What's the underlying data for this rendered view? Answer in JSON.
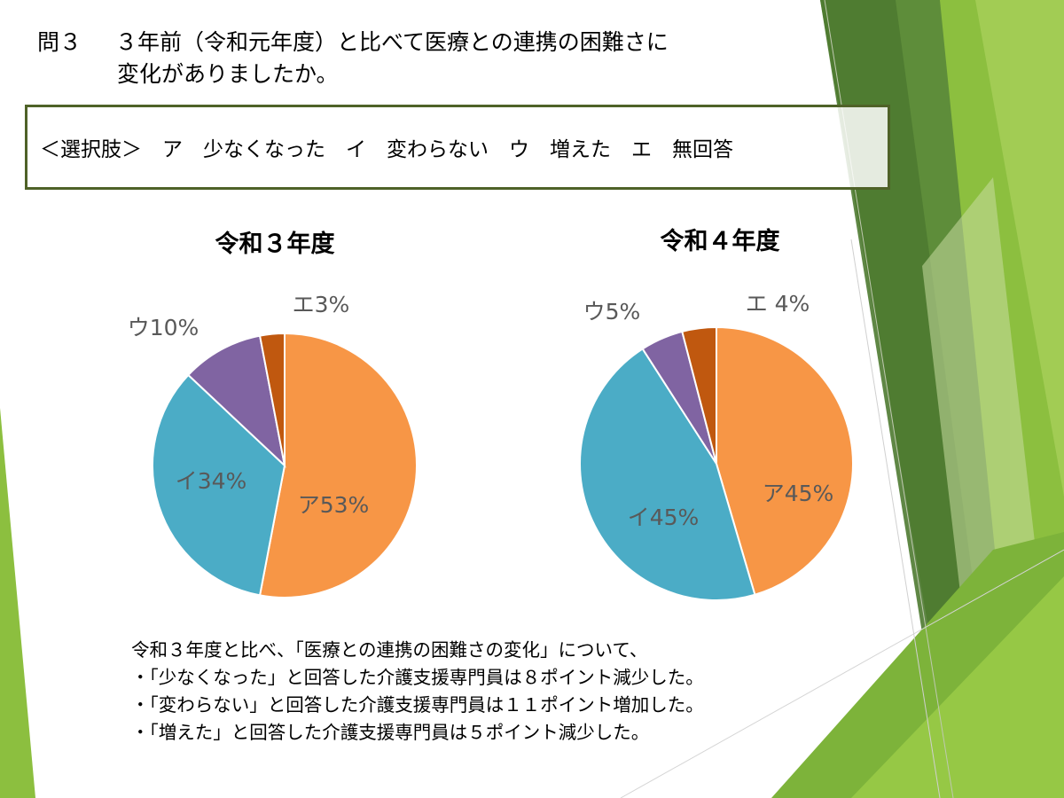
{
  "question": {
    "number": "問３",
    "line1": "３年前（令和元年度）と比べて医療との連携の困難さに",
    "line2": "変化がありましたか。"
  },
  "choices": "＜選択肢＞　ア　少なくなった　イ　変わらない　ウ　増えた　エ　無回答",
  "summary": {
    "lead": "令和３年度と比べ、「医療との連携の困難さの変化」について、",
    "bullets": [
      "・「少なくなった」と回答した介護支援専門員は８ポイント減少した。",
      "・「変わらない」と回答した介護支援専門員は１１ポイント増加した。",
      "・「増えた」と回答した介護支援専門員は５ポイント減少した。"
    ]
  },
  "colors": {
    "ア": "#f79646",
    "イ": "#4bacc6",
    "ウ": "#8064a2",
    "エ": "#c0580f",
    "border": "#4f6228",
    "label": "#595959"
  },
  "chart_data": [
    {
      "type": "pie",
      "title": "令和３年度",
      "categories": [
        "ア",
        "イ",
        "ウ",
        "エ"
      ],
      "values": [
        53,
        34,
        10,
        3
      ],
      "labels": [
        "ア53%",
        "イ34%",
        "ウ10%",
        "エ3%"
      ]
    },
    {
      "type": "pie",
      "title": "令和４年度",
      "categories": [
        "ア",
        "イ",
        "ウ",
        "エ"
      ],
      "values": [
        45,
        45,
        5,
        4
      ],
      "labels": [
        "ア45%",
        "イ45%",
        "ウ5%",
        "エ 4%"
      ]
    }
  ]
}
